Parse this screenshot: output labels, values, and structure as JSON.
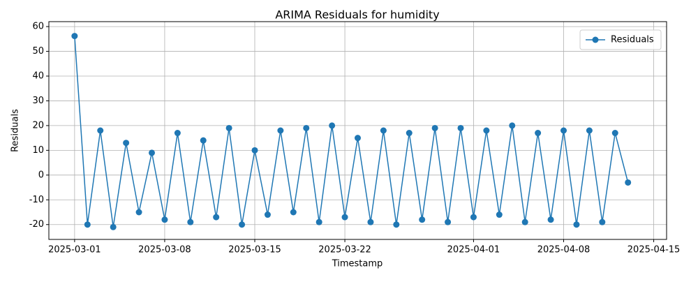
{
  "chart_data": {
    "type": "line",
    "title": "ARIMA Residuals for humidity",
    "x_label": "Timestamp",
    "y_label": "Residuals",
    "x": [
      "2025-03-01",
      "2025-03-02",
      "2025-03-03",
      "2025-03-04",
      "2025-03-05",
      "2025-03-06",
      "2025-03-07",
      "2025-03-08",
      "2025-03-09",
      "2025-03-10",
      "2025-03-11",
      "2025-03-12",
      "2025-03-13",
      "2025-03-14",
      "2025-03-15",
      "2025-03-16",
      "2025-03-17",
      "2025-03-18",
      "2025-03-19",
      "2025-03-20",
      "2025-03-21",
      "2025-03-22",
      "2025-03-23",
      "2025-03-24",
      "2025-03-25",
      "2025-03-26",
      "2025-03-27",
      "2025-03-28",
      "2025-03-29",
      "2025-03-30",
      "2025-03-31",
      "2025-04-01",
      "2025-04-02",
      "2025-04-03",
      "2025-04-04",
      "2025-04-05",
      "2025-04-06",
      "2025-04-07",
      "2025-04-08",
      "2025-04-09",
      "2025-04-10",
      "2025-04-11",
      "2025-04-12",
      "2025-04-13"
    ],
    "series": [
      {
        "name": "Residuals",
        "color": "#1f77b4",
        "values": [
          56.2,
          -20,
          18,
          -21,
          13,
          -15,
          9,
          -18,
          17,
          -19,
          14,
          -17,
          19,
          -20,
          10,
          -16,
          18,
          -15,
          19,
          -19,
          20,
          -17,
          15,
          -19,
          18,
          -20,
          17,
          -18,
          19,
          -19,
          19,
          -17,
          18,
          -16,
          20,
          -19,
          17,
          -18,
          18,
          -20,
          18,
          -19,
          17,
          -3
        ]
      }
    ],
    "xlim": [
      "2025-02-27",
      "2025-04-16"
    ],
    "xticks": [
      "2025-03-01",
      "2025-03-08",
      "2025-03-15",
      "2025-03-22",
      "2025-04-01",
      "2025-04-08",
      "2025-04-15"
    ],
    "ylim": [
      -26,
      62
    ],
    "yticks": [
      -20,
      -10,
      0,
      10,
      20,
      30,
      40,
      50,
      60
    ],
    "grid": true,
    "legend": "upper right"
  }
}
